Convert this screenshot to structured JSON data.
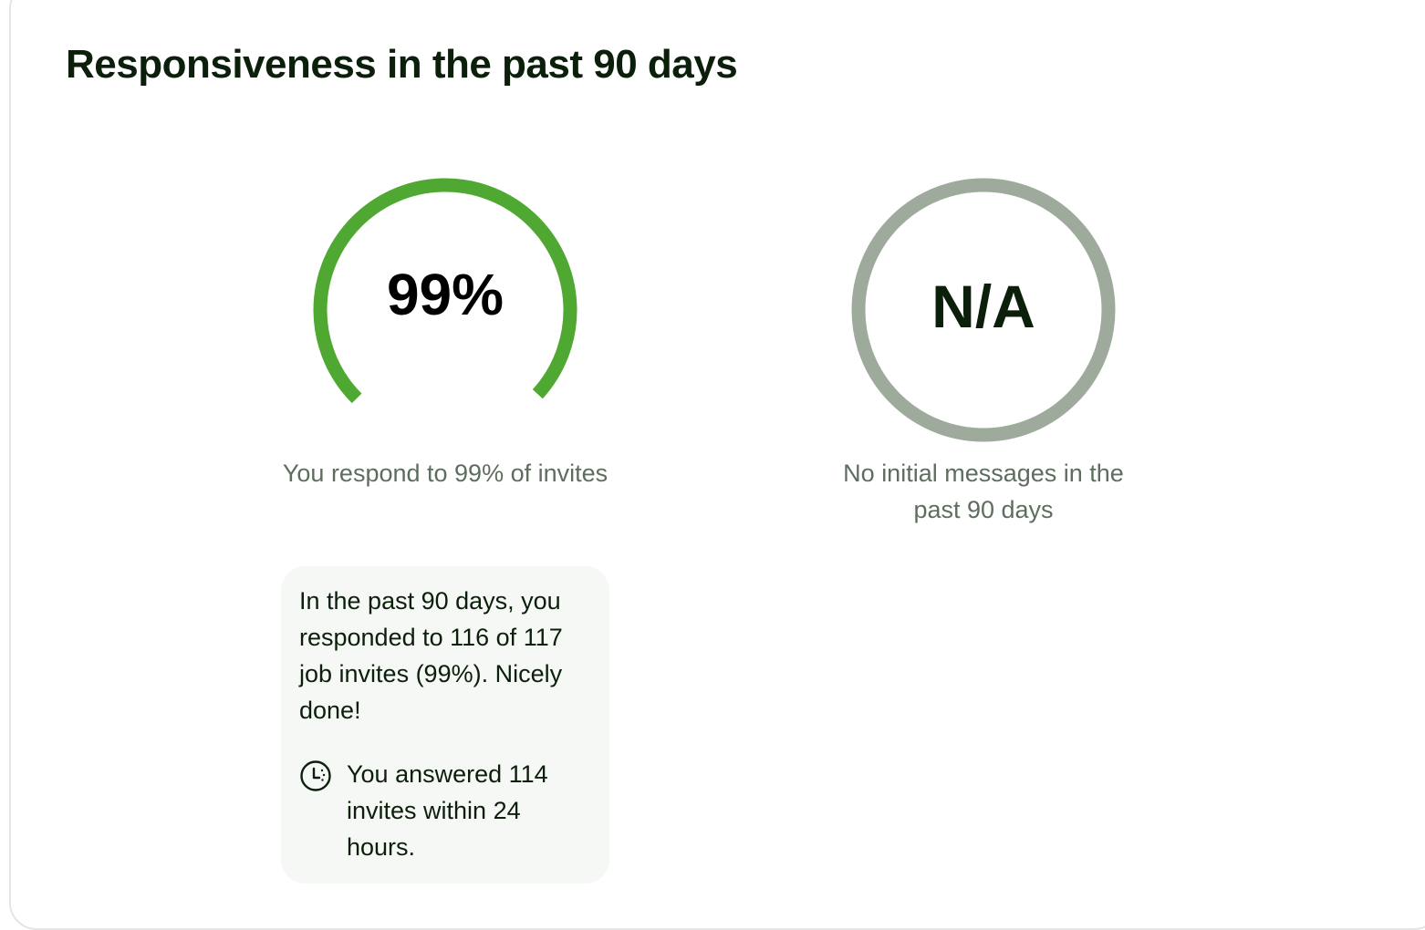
{
  "title": "Responsiveness in the past 90 days",
  "colors": {
    "accent_green": "#4fa831",
    "neutral_ring": "#9eab9c",
    "caption_text": "#5e6e5e",
    "info_background": "#f6f8f5"
  },
  "invite_response": {
    "value_label": "99%",
    "percent": 99,
    "caption": "You respond to 99% of invites"
  },
  "initial_messages": {
    "value_label": "N/A",
    "caption": "No initial messages in the past 90 days"
  },
  "info_box": {
    "summary": "In the past 90 days, you responded to 116 of 117 job invites (99%). Nicely done!",
    "icon": "clock-icon",
    "detail": "You answered 114 invites within 24 hours."
  }
}
